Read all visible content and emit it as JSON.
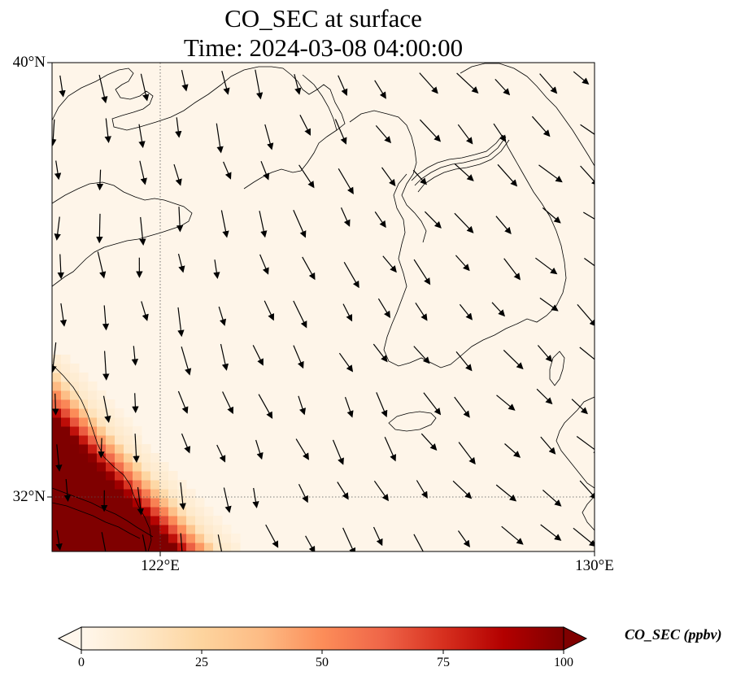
{
  "figure": {
    "title_line_1": "CO_SEC at surface",
    "title_line_2": "Time: 2024-03-08 04:00:00"
  },
  "axes": {
    "lat_labels": [
      "40°N",
      "32°N"
    ],
    "lon_labels": [
      "122°E",
      "130°E"
    ],
    "lon_range": [
      120,
      130
    ],
    "lat_range": [
      31,
      40
    ],
    "gridlines": "dotted at 122°E and 32°N"
  },
  "colorbar": {
    "label": "CO_SEC (ppbv)",
    "ticks": [
      "0",
      "25",
      "50",
      "75",
      "100"
    ],
    "min": 0,
    "max": 100,
    "colormap": "OrRd",
    "colors": [
      "#fff7ec",
      "#fee8c8",
      "#fdd49e",
      "#fdbb84",
      "#fc8d59",
      "#ef6548",
      "#d7301f",
      "#b30000",
      "#7f0000"
    ],
    "extend": "both"
  },
  "field": {
    "variable": "CO_SEC",
    "background_level": 3,
    "high_region": "southwest corner near 120–122°E, 31–33°N",
    "high_level": 100
  },
  "wind_vectors": {
    "prevailing_direction": "north to south over the Yellow Sea, northwest to southeast near Korea and Japan"
  }
}
